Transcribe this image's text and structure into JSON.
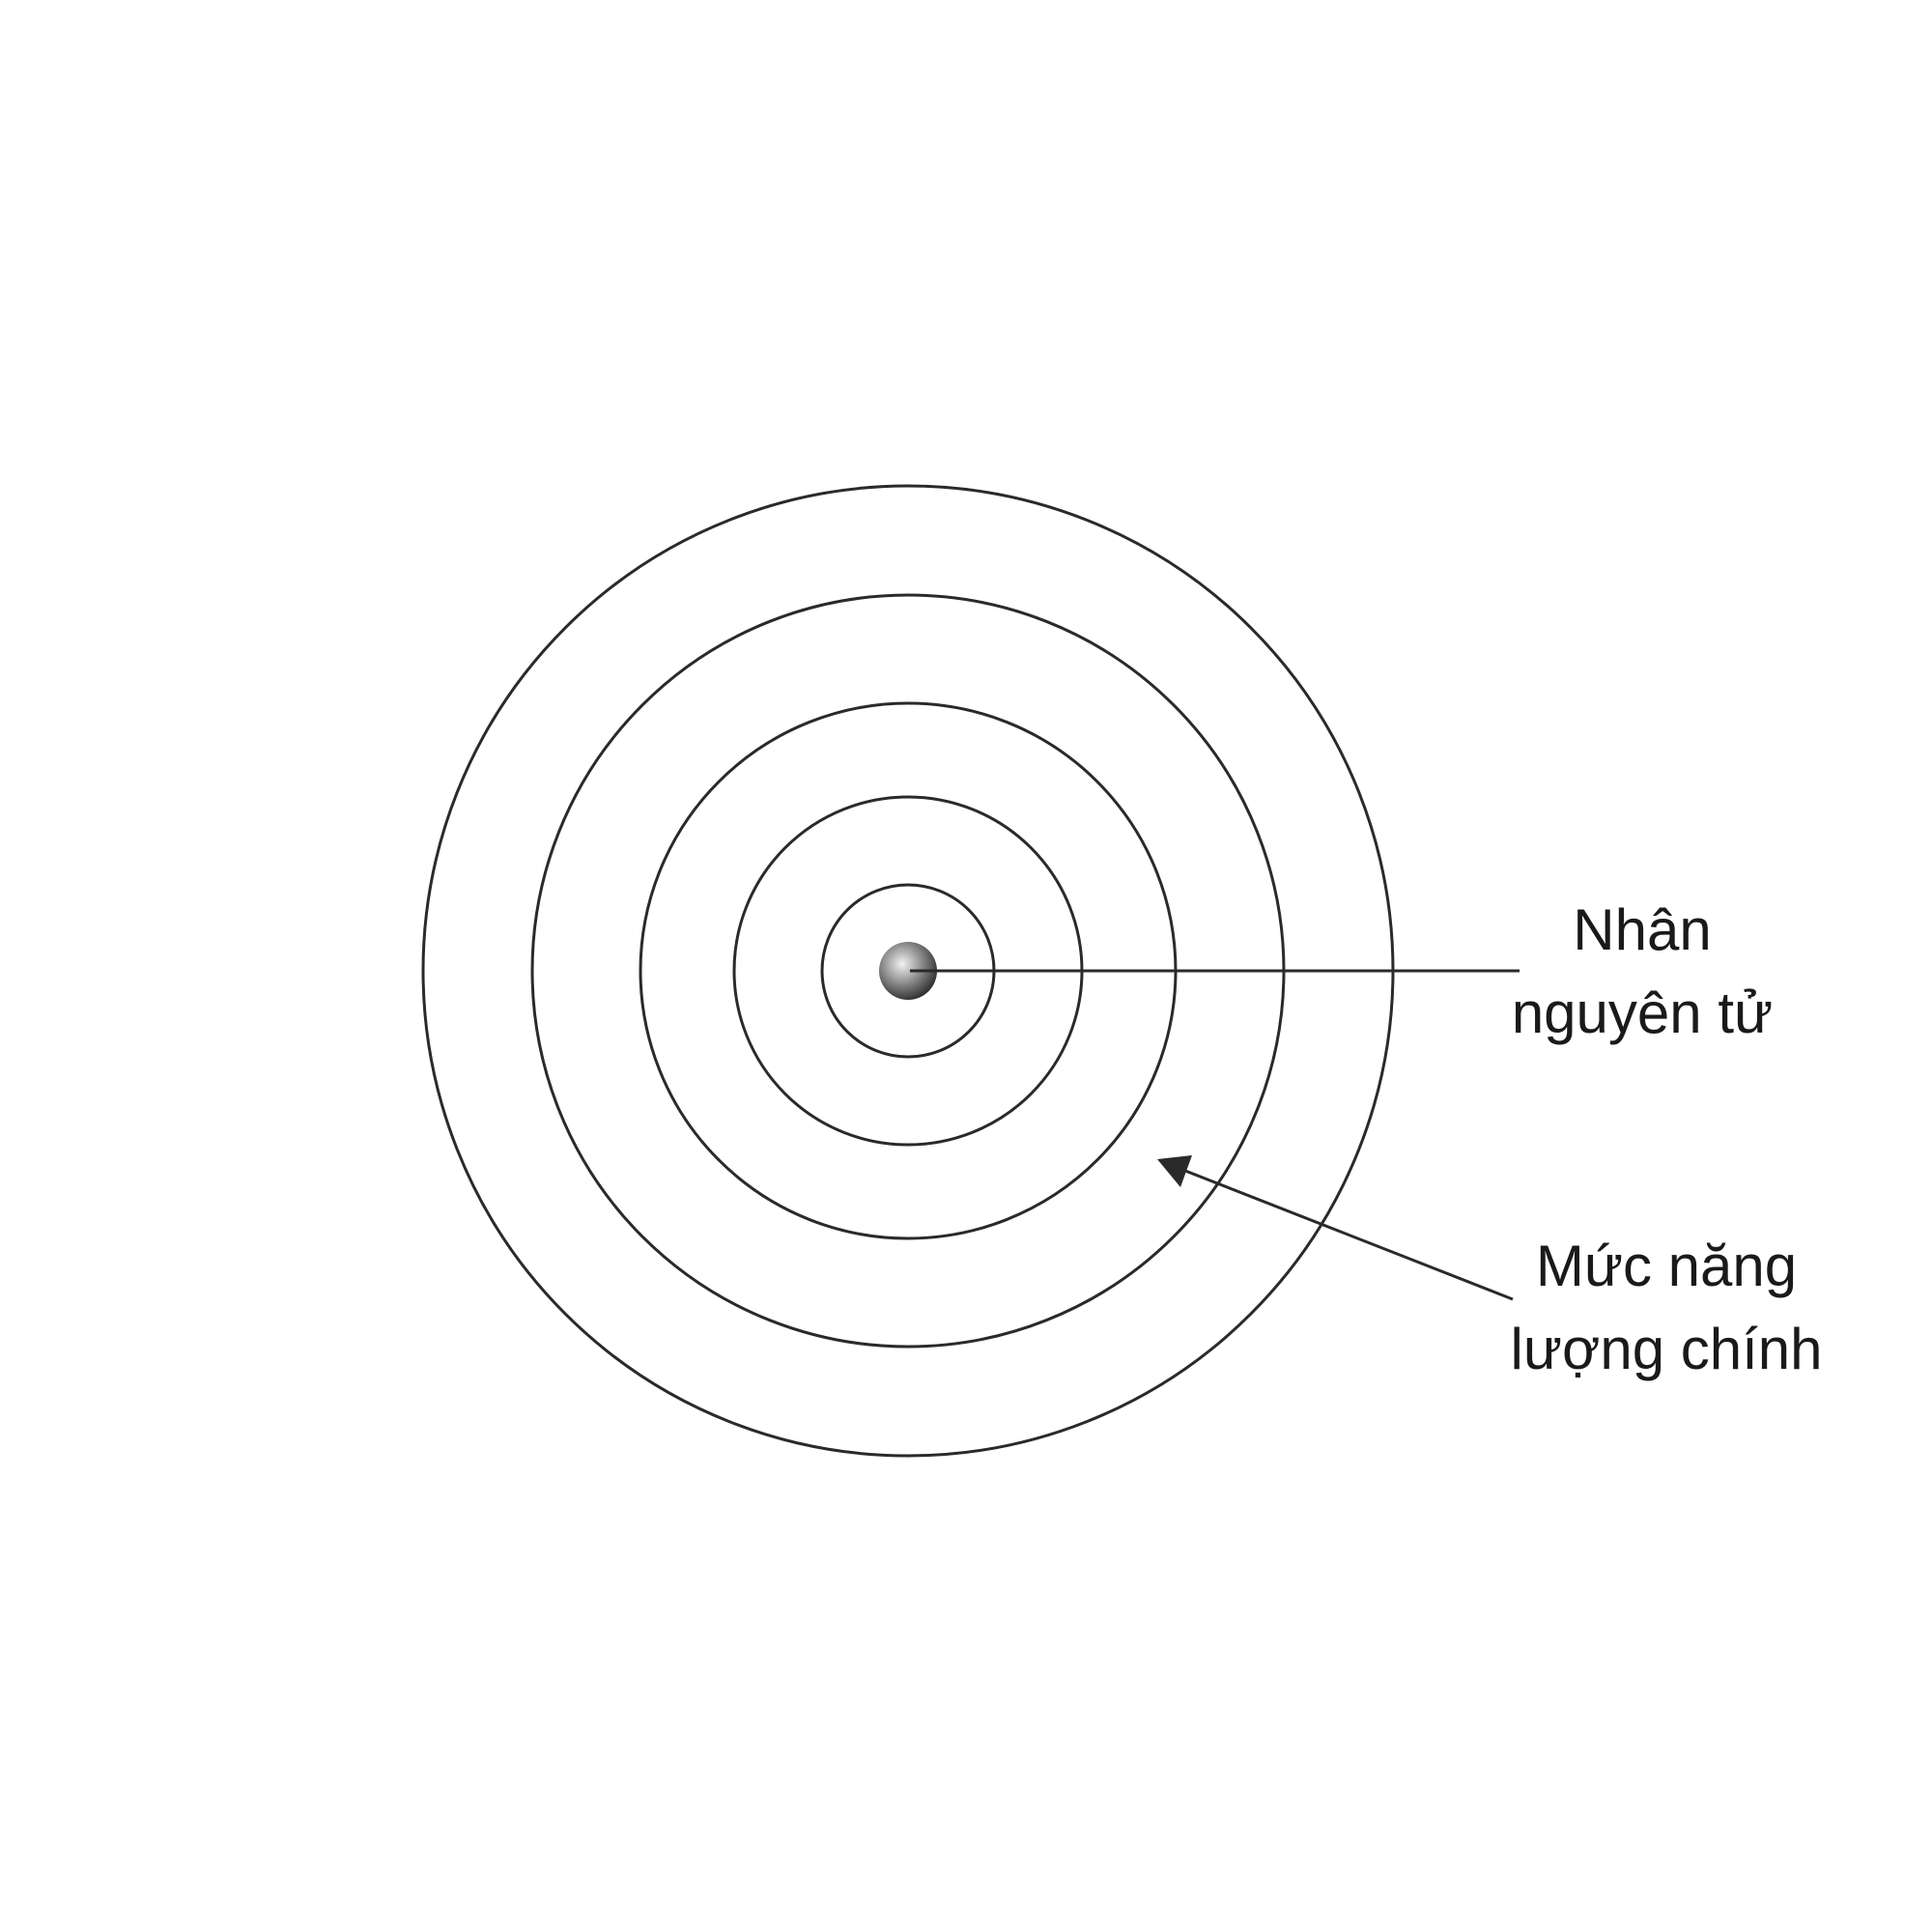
{
  "labels": {
    "nucleus": {
      "line1": "Nhân",
      "line2": "nguyên tử"
    },
    "energy_level": {
      "line1": "Mức năng",
      "line2": "lượng chính"
    }
  },
  "diagram": {
    "shell_count": 5,
    "colors": {
      "background": "#ffffff",
      "stroke": "#2a2a2a",
      "nucleus_highlight": "#e8e8e8",
      "nucleus_shadow": "#3a3a3a"
    }
  }
}
